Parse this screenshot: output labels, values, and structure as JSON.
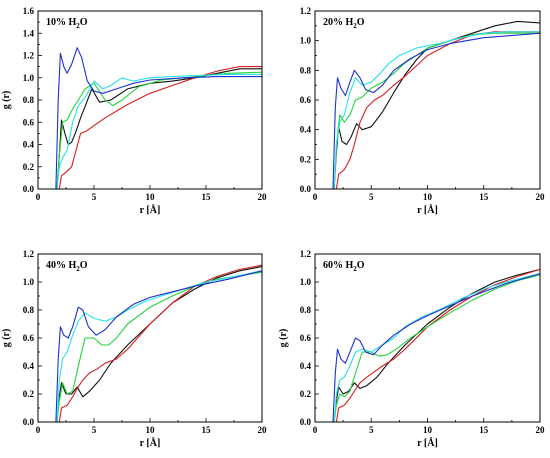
{
  "colors": {
    "black": "#111111",
    "red": "#d42020",
    "green": "#22d43a",
    "cyan": "#29e2e8",
    "blue": "#1f2fd0"
  },
  "chart_data": [
    {
      "type": "line",
      "title_main": "10% H",
      "title_sub": "2",
      "title_tail": "O",
      "xlabel": "r [Å]",
      "ylabel": "g (r)",
      "xlim": [
        0,
        20
      ],
      "ylim": [
        0,
        1.6
      ],
      "xticks": [
        0,
        5,
        10,
        15,
        20
      ],
      "yticks": [
        0.0,
        0.2,
        0.4,
        0.6,
        0.8,
        1.0,
        1.2,
        1.4,
        1.6
      ],
      "ytick_labels": [
        "0.0",
        "0.2",
        "0.4",
        "0.6",
        "0.8",
        "1.0",
        "1.2",
        "1.4",
        "1.6"
      ],
      "series": [
        {
          "color": "black",
          "x": [
            0,
            1.7,
            1.9,
            2.1,
            2.4,
            2.7,
            3.0,
            3.4,
            3.8,
            4.2,
            4.8,
            5.5,
            6.5,
            8,
            10,
            12,
            14,
            16,
            18,
            20
          ],
          "y": [
            0,
            0,
            0.3,
            0.62,
            0.5,
            0.4,
            0.42,
            0.52,
            0.64,
            0.74,
            0.9,
            0.78,
            0.8,
            0.9,
            0.95,
            0.97,
            1.0,
            1.04,
            1.08,
            1.08
          ]
        },
        {
          "color": "red",
          "x": [
            0,
            1.9,
            2.1,
            2.5,
            3.0,
            3.4,
            3.8,
            4.3,
            5,
            6,
            7,
            8,
            10,
            12,
            14,
            16,
            18,
            20
          ],
          "y": [
            0,
            0,
            0.12,
            0.15,
            0.2,
            0.35,
            0.5,
            0.52,
            0.57,
            0.64,
            0.7,
            0.76,
            0.86,
            0.93,
            1.0,
            1.06,
            1.1,
            1.1
          ]
        },
        {
          "color": "green",
          "x": [
            0,
            1.7,
            1.9,
            2.2,
            2.6,
            3.1,
            3.6,
            4.2,
            5,
            6,
            6.7,
            7.5,
            9,
            11,
            13,
            15,
            17,
            20
          ],
          "y": [
            0,
            0,
            0.3,
            0.6,
            0.62,
            0.72,
            0.8,
            0.9,
            0.95,
            0.8,
            0.75,
            0.8,
            0.92,
            0.98,
            1.0,
            1.02,
            1.04,
            1.05
          ]
        },
        {
          "color": "cyan",
          "x": [
            0,
            1.7,
            1.9,
            2.2,
            2.6,
            3.1,
            3.6,
            4.2,
            5,
            5.8,
            6.5,
            7.5,
            8.5,
            10,
            12,
            14,
            17,
            20
          ],
          "y": [
            0,
            0,
            0.2,
            0.28,
            0.35,
            0.6,
            0.75,
            0.82,
            0.97,
            0.9,
            0.93,
            1.0,
            0.97,
            1.0,
            1.01,
            1.02,
            1.03,
            1.03
          ]
        },
        {
          "color": "blue",
          "x": [
            0,
            1.6,
            1.8,
            2.0,
            2.3,
            2.6,
            3.0,
            3.5,
            3.9,
            4.4,
            5,
            5.8,
            7,
            8.5,
            10,
            13,
            16,
            20
          ],
          "y": [
            0,
            0,
            0.8,
            1.22,
            1.1,
            1.04,
            1.12,
            1.27,
            1.18,
            0.97,
            0.88,
            0.86,
            0.9,
            0.95,
            0.98,
            1.0,
            1.01,
            1.01
          ]
        }
      ]
    },
    {
      "type": "line",
      "title_main": "20% H",
      "title_sub": "2",
      "title_tail": "O",
      "xlabel": "r [Å]",
      "ylabel": "",
      "xlim": [
        0,
        20
      ],
      "ylim": [
        0,
        1.2
      ],
      "xticks": [
        0,
        5,
        10,
        15,
        20
      ],
      "yticks": [
        0.0,
        0.2,
        0.4,
        0.6,
        0.8,
        1.0,
        1.2
      ],
      "ytick_labels": [
        "0.0",
        "0.2",
        "0.4",
        "0.6",
        "0.8",
        "1.0",
        "1.2"
      ],
      "series": [
        {
          "color": "black",
          "x": [
            0,
            1.7,
            1.9,
            2.1,
            2.4,
            2.8,
            3.2,
            3.7,
            4.2,
            5,
            6,
            7,
            8,
            9,
            10,
            12,
            14,
            16,
            18,
            20
          ],
          "y": [
            0,
            0,
            0.25,
            0.42,
            0.32,
            0.3,
            0.35,
            0.44,
            0.4,
            0.42,
            0.52,
            0.65,
            0.77,
            0.87,
            0.95,
            1.0,
            1.05,
            1.1,
            1.13,
            1.12
          ]
        },
        {
          "color": "red",
          "x": [
            0,
            1.9,
            2.1,
            2.6,
            3.1,
            3.5,
            4,
            4.6,
            5.3,
            6,
            7,
            8,
            9,
            10,
            12,
            14,
            16,
            18,
            20
          ],
          "y": [
            0,
            0,
            0.1,
            0.13,
            0.2,
            0.3,
            0.45,
            0.55,
            0.6,
            0.63,
            0.7,
            0.76,
            0.83,
            0.9,
            0.98,
            1.04,
            1.06,
            1.06,
            1.06
          ]
        },
        {
          "color": "green",
          "x": [
            0,
            1.7,
            1.9,
            2.2,
            2.6,
            3.1,
            3.6,
            4.2,
            5,
            6,
            7,
            8,
            10,
            12,
            14,
            16,
            18,
            20
          ],
          "y": [
            0,
            0,
            0.3,
            0.5,
            0.45,
            0.5,
            0.6,
            0.62,
            0.68,
            0.72,
            0.78,
            0.85,
            0.95,
            1.0,
            1.04,
            1.05,
            1.05,
            1.05
          ]
        },
        {
          "color": "cyan",
          "x": [
            0,
            1.7,
            1.9,
            2.2,
            2.6,
            3.1,
            3.6,
            4.2,
            5,
            5.8,
            6.6,
            7.5,
            9,
            11,
            13,
            15,
            17,
            20
          ],
          "y": [
            0,
            0,
            0.3,
            0.45,
            0.5,
            0.65,
            0.75,
            0.7,
            0.72,
            0.78,
            0.85,
            0.9,
            0.95,
            0.98,
            1.02,
            1.05,
            1.06,
            1.06
          ]
        },
        {
          "color": "blue",
          "x": [
            0,
            1.6,
            1.8,
            2.0,
            2.3,
            2.7,
            3.1,
            3.5,
            4,
            4.5,
            5.2,
            6,
            7,
            8.5,
            10,
            12,
            15,
            20
          ],
          "y": [
            0,
            0,
            0.55,
            0.75,
            0.68,
            0.63,
            0.72,
            0.8,
            0.75,
            0.67,
            0.65,
            0.7,
            0.8,
            0.88,
            0.94,
            0.98,
            1.02,
            1.05
          ]
        }
      ]
    },
    {
      "type": "line",
      "title_main": "40% H",
      "title_sub": "2",
      "title_tail": "O",
      "xlabel": "r [Å]",
      "ylabel": "g (r)",
      "xlim": [
        0,
        20
      ],
      "ylim": [
        0,
        1.2
      ],
      "xticks": [
        0,
        5,
        10,
        15,
        20
      ],
      "yticks": [
        0.0,
        0.2,
        0.4,
        0.6,
        0.8,
        1.0,
        1.2
      ],
      "ytick_labels": [
        "0.0",
        "0.2",
        "0.4",
        "0.6",
        "0.8",
        "1.0",
        "1.2"
      ],
      "series": [
        {
          "color": "black",
          "x": [
            0,
            1.7,
            1.9,
            2.1,
            2.5,
            3.0,
            3.5,
            4.0,
            4.6,
            5.5,
            6.5,
            8,
            10,
            12,
            14,
            16,
            18,
            20
          ],
          "y": [
            0,
            0,
            0.18,
            0.28,
            0.2,
            0.2,
            0.25,
            0.18,
            0.22,
            0.3,
            0.42,
            0.55,
            0.7,
            0.85,
            0.95,
            1.03,
            1.08,
            1.11
          ]
        },
        {
          "color": "red",
          "x": [
            0,
            1.9,
            2.1,
            2.6,
            3.1,
            3.5,
            4,
            4.6,
            5.3,
            6,
            7,
            8,
            10,
            12,
            14,
            16,
            18,
            20
          ],
          "y": [
            0,
            0,
            0.1,
            0.12,
            0.18,
            0.24,
            0.3,
            0.35,
            0.38,
            0.42,
            0.45,
            0.52,
            0.7,
            0.85,
            0.97,
            1.04,
            1.09,
            1.12
          ]
        },
        {
          "color": "green",
          "x": [
            0,
            1.7,
            1.9,
            2.2,
            2.6,
            3.1,
            3.6,
            4.2,
            5,
            5.7,
            6.3,
            7,
            8,
            10,
            12,
            14,
            16,
            20
          ],
          "y": [
            0,
            0,
            0.15,
            0.28,
            0.2,
            0.22,
            0.4,
            0.6,
            0.6,
            0.55,
            0.55,
            0.6,
            0.7,
            0.82,
            0.9,
            0.97,
            1.02,
            1.07
          ]
        },
        {
          "color": "cyan",
          "x": [
            0,
            1.7,
            1.9,
            2.2,
            2.6,
            3.1,
            3.6,
            4.2,
            5,
            6,
            7,
            8,
            9.5,
            11,
            13,
            15,
            17,
            20
          ],
          "y": [
            0,
            0,
            0.3,
            0.45,
            0.5,
            0.62,
            0.72,
            0.78,
            0.74,
            0.72,
            0.75,
            0.8,
            0.86,
            0.9,
            0.95,
            1.0,
            1.03,
            1.08
          ]
        },
        {
          "color": "blue",
          "x": [
            0,
            1.6,
            1.8,
            2.0,
            2.3,
            2.7,
            3.1,
            3.6,
            4.0,
            4.5,
            5.2,
            6,
            7,
            8.5,
            10,
            12,
            14,
            17,
            20
          ],
          "y": [
            0,
            0,
            0.45,
            0.68,
            0.62,
            0.6,
            0.68,
            0.82,
            0.8,
            0.68,
            0.62,
            0.66,
            0.75,
            0.84,
            0.89,
            0.93,
            0.97,
            1.02,
            1.08
          ]
        }
      ]
    },
    {
      "type": "line",
      "title_main": "60% H",
      "title_sub": "2",
      "title_tail": "O",
      "xlabel": "r [Å]",
      "ylabel": "g (r)",
      "xlim": [
        0,
        20
      ],
      "ylim": [
        0,
        1.2
      ],
      "xticks": [
        0,
        5,
        10,
        15,
        20
      ],
      "yticks": [
        0.0,
        0.2,
        0.4,
        0.6,
        0.8,
        1.0,
        1.2
      ],
      "ytick_labels": [
        "0.0",
        "0.2",
        "0.4",
        "0.6",
        "0.8",
        "1.0",
        "1.2"
      ],
      "series": [
        {
          "color": "black",
          "x": [
            0,
            1.7,
            1.9,
            2.1,
            2.5,
            3.0,
            3.5,
            4.0,
            4.6,
            5.5,
            6.5,
            8,
            10,
            12,
            14,
            16,
            18,
            20
          ],
          "y": [
            0,
            0,
            0.15,
            0.25,
            0.2,
            0.22,
            0.28,
            0.24,
            0.26,
            0.32,
            0.42,
            0.55,
            0.7,
            0.82,
            0.92,
            1.0,
            1.05,
            1.09
          ]
        },
        {
          "color": "red",
          "x": [
            0,
            1.9,
            2.1,
            2.6,
            3.1,
            3.5,
            4,
            4.6,
            5.3,
            6,
            7,
            8,
            10,
            12,
            14,
            16,
            18,
            20
          ],
          "y": [
            0,
            0,
            0.1,
            0.12,
            0.17,
            0.22,
            0.28,
            0.32,
            0.36,
            0.4,
            0.45,
            0.52,
            0.68,
            0.8,
            0.9,
            0.98,
            1.04,
            1.09
          ]
        },
        {
          "color": "green",
          "x": [
            0,
            1.7,
            1.9,
            2.2,
            2.6,
            3.1,
            3.6,
            4.2,
            5,
            5.7,
            6.4,
            7.2,
            8.5,
            10,
            12,
            14,
            16,
            18,
            20
          ],
          "y": [
            0,
            0,
            0.12,
            0.2,
            0.18,
            0.22,
            0.35,
            0.5,
            0.5,
            0.47,
            0.48,
            0.52,
            0.6,
            0.68,
            0.78,
            0.87,
            0.95,
            1.01,
            1.05
          ]
        },
        {
          "color": "cyan",
          "x": [
            0,
            1.7,
            1.9,
            2.2,
            2.6,
            3.1,
            3.6,
            4.2,
            5,
            6,
            7,
            8,
            9.5,
            11,
            13,
            15,
            17,
            20
          ],
          "y": [
            0,
            0,
            0.2,
            0.3,
            0.32,
            0.4,
            0.5,
            0.52,
            0.5,
            0.55,
            0.6,
            0.68,
            0.75,
            0.8,
            0.88,
            0.95,
            1.0,
            1.06
          ]
        },
        {
          "color": "blue",
          "x": [
            0,
            1.6,
            1.8,
            2.0,
            2.3,
            2.7,
            3.1,
            3.6,
            4.0,
            4.5,
            5.2,
            6,
            7,
            8.5,
            10,
            12,
            14,
            17,
            20
          ],
          "y": [
            0,
            0,
            0.35,
            0.52,
            0.45,
            0.42,
            0.5,
            0.6,
            0.58,
            0.5,
            0.48,
            0.55,
            0.62,
            0.7,
            0.76,
            0.83,
            0.9,
            0.99,
            1.06
          ]
        }
      ]
    }
  ]
}
